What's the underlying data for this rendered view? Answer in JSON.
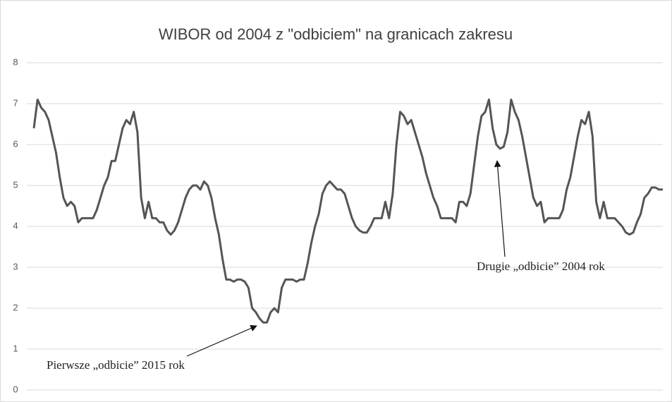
{
  "chart_data": {
    "type": "line",
    "title": "WIBOR od 2004 z \"odbiciem\" na granicach zakresu",
    "ylim": [
      0,
      8
    ],
    "yticks": [
      0,
      1,
      2,
      3,
      4,
      5,
      6,
      7,
      8
    ],
    "grid": true,
    "color": "#555555",
    "values": [
      6.4,
      7.1,
      6.9,
      6.8,
      6.6,
      6.2,
      5.8,
      5.2,
      4.7,
      4.5,
      4.6,
      4.5,
      4.1,
      4.2,
      4.2,
      4.2,
      4.2,
      4.4,
      4.7,
      5.0,
      5.2,
      5.6,
      5.6,
      6.0,
      6.4,
      6.6,
      6.5,
      6.8,
      6.3,
      4.7,
      4.2,
      4.6,
      4.2,
      4.2,
      4.1,
      4.1,
      3.9,
      3.8,
      3.9,
      4.1,
      4.4,
      4.7,
      4.9,
      5.0,
      5.0,
      4.9,
      5.1,
      5.0,
      4.7,
      4.2,
      3.8,
      3.2,
      2.7,
      2.7,
      2.65,
      2.7,
      2.7,
      2.65,
      2.5,
      2.0,
      1.9,
      1.75,
      1.65,
      1.65,
      1.9,
      2.0,
      1.9,
      2.5,
      2.7,
      2.7,
      2.7,
      2.65,
      2.7,
      2.7,
      3.1,
      3.6,
      4.0,
      4.3,
      4.8,
      5.0,
      5.1,
      5.0,
      4.9,
      4.9,
      4.8,
      4.5,
      4.2,
      4.0,
      3.9,
      3.85,
      3.85,
      4.0,
      4.2,
      4.2,
      4.2,
      4.6,
      4.2,
      4.8,
      6.0,
      6.8,
      6.7,
      6.5,
      6.6,
      6.3,
      6.0,
      5.7,
      5.3,
      5.0,
      4.7,
      4.5,
      4.2,
      4.2,
      4.2,
      4.2,
      4.1,
      4.6,
      4.6,
      4.5,
      4.8,
      5.5,
      6.2,
      6.7,
      6.8,
      7.1,
      6.4,
      6.0,
      5.9,
      5.95,
      6.3,
      7.1,
      6.8,
      6.6,
      6.2,
      5.7,
      5.2,
      4.7,
      4.5,
      4.6,
      4.1,
      4.2,
      4.2,
      4.2,
      4.2,
      4.4,
      4.9,
      5.2,
      5.7,
      6.2,
      6.6,
      6.5,
      6.8,
      6.2,
      4.6,
      4.2,
      4.6,
      4.2,
      4.2,
      4.2,
      4.1,
      4.0,
      3.85,
      3.8,
      3.85,
      4.1,
      4.3,
      4.7,
      4.8,
      4.95,
      4.95,
      4.9,
      4.9
    ],
    "annotations": [
      "Drugie „odbicie” 2004 rok",
      "Pierwsze „odbicie” 2015 rok"
    ]
  }
}
